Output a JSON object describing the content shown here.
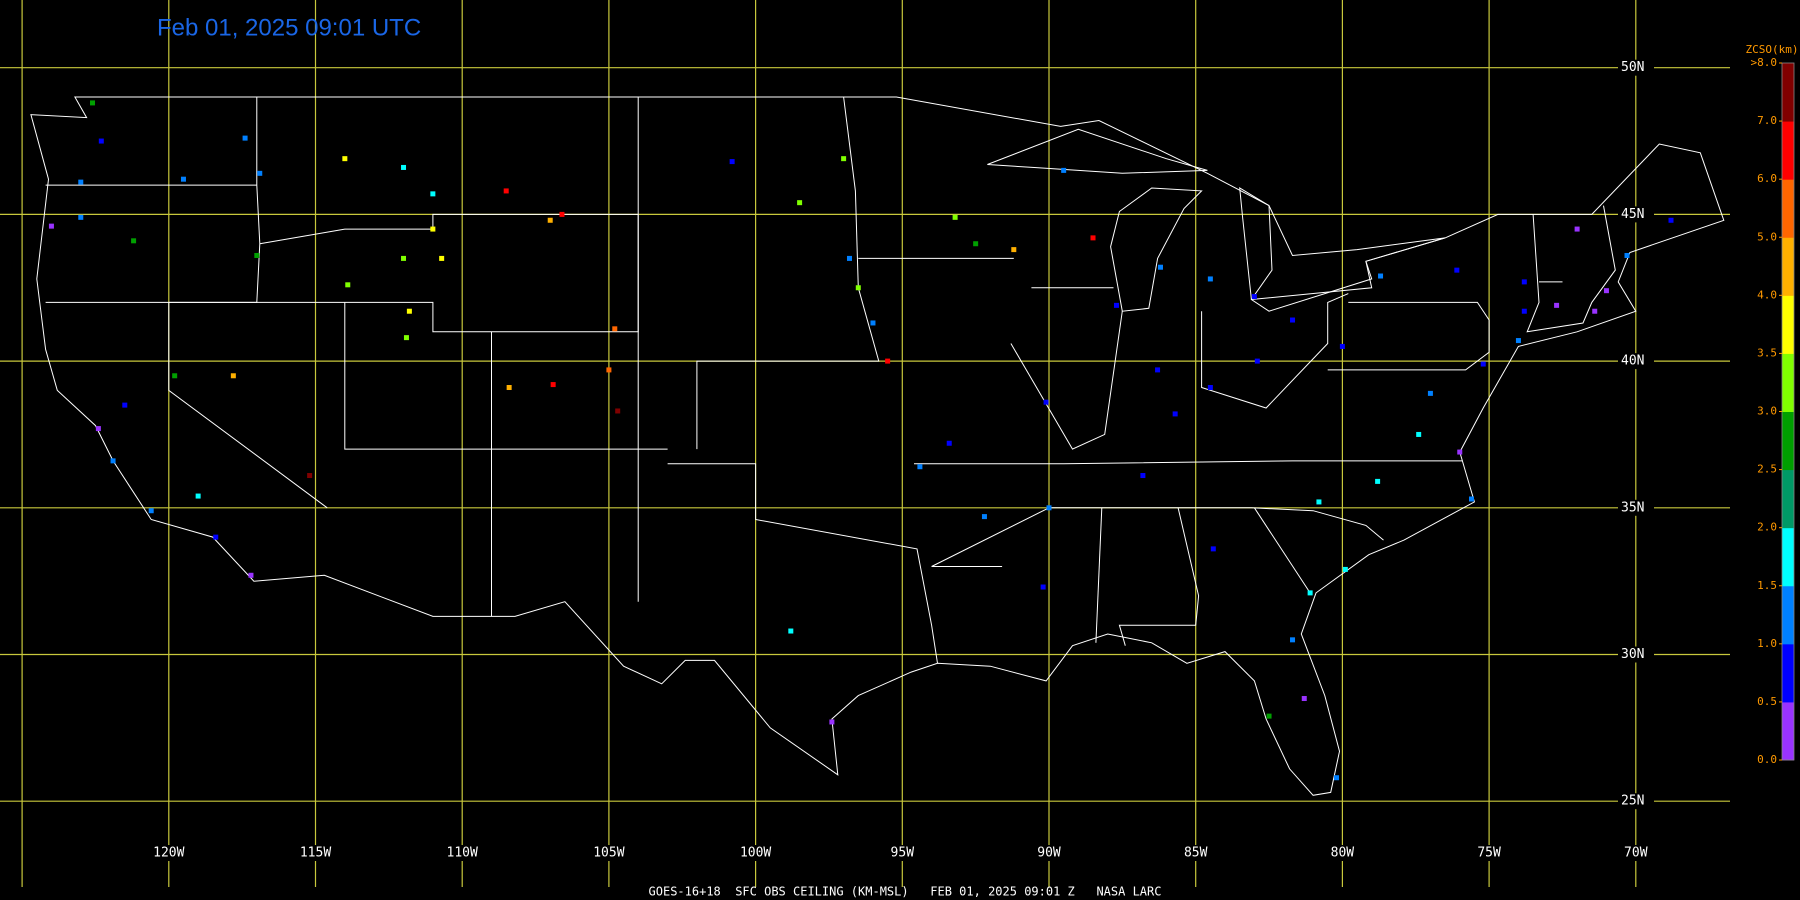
{
  "header": {
    "title": "Feb 01, 2025 09:01 UTC"
  },
  "footer": {
    "text": "GOES-16+18  SFC OBS CEILING (KM-MSL)   FEB 01, 2025 09:01 Z   NASA LARC"
  },
  "grid": {
    "lon_lines": [
      {
        "value": -125,
        "label": null
      },
      {
        "value": -120,
        "label": "120W"
      },
      {
        "value": -115,
        "label": "115W"
      },
      {
        "value": -110,
        "label": "110W"
      },
      {
        "value": -105,
        "label": "105W"
      },
      {
        "value": -100,
        "label": "100W"
      },
      {
        "value": -95,
        "label": "95W"
      },
      {
        "value": -90,
        "label": "90W"
      },
      {
        "value": -85,
        "label": "85W"
      },
      {
        "value": -80,
        "label": "80W"
      },
      {
        "value": -75,
        "label": "75W"
      },
      {
        "value": -70,
        "label": "70W"
      }
    ],
    "lat_lines": [
      {
        "value": 50,
        "label": "50N"
      },
      {
        "value": 45,
        "label": "45N"
      },
      {
        "value": 40,
        "label": "40N"
      },
      {
        "value": 35,
        "label": "35N"
      },
      {
        "value": 30,
        "label": "30N"
      },
      {
        "value": 25,
        "label": "25N"
      }
    ]
  },
  "colorbar": {
    "title": "ZCSO(km)",
    "ticks": [
      {
        "value": 0,
        "label": "0.0"
      },
      {
        "value": 0.5,
        "label": "0.5"
      },
      {
        "value": 1,
        "label": "1.0"
      },
      {
        "value": 1.5,
        "label": "1.5"
      },
      {
        "value": 2,
        "label": "2.0"
      },
      {
        "value": 2.5,
        "label": "2.5"
      },
      {
        "value": 3,
        "label": "3.0"
      },
      {
        "value": 3.5,
        "label": "3.5"
      },
      {
        "value": 4,
        "label": "4.0"
      },
      {
        "value": 5,
        "label": "5.0"
      },
      {
        "value": 6,
        "label": "6.0"
      },
      {
        "value": 7,
        "label": "7.0"
      },
      {
        "value": 8,
        "label": ">8.0"
      }
    ],
    "colors": [
      "#9933ff",
      "#0000ff",
      "#0080ff",
      "#00ffff",
      "#009966",
      "#00a000",
      "#80ff00",
      "#ffff00",
      "#ffb000",
      "#ff6600",
      "#ff0000",
      "#800000"
    ]
  },
  "observations": [
    {
      "lon": -122.3,
      "lat": 47.5,
      "km": 0.8
    },
    {
      "lon": -122.6,
      "lat": 48.8,
      "km": 2.5
    },
    {
      "lon": -123.0,
      "lat": 46.1,
      "km": 1.1
    },
    {
      "lon": -124.0,
      "lat": 44.6,
      "km": 0.4
    },
    {
      "lon": -123.0,
      "lat": 44.9,
      "km": 1.2
    },
    {
      "lon": -121.2,
      "lat": 44.1,
      "km": 2.7
    },
    {
      "lon": -117.4,
      "lat": 47.6,
      "km": 1.2
    },
    {
      "lon": -116.9,
      "lat": 46.4,
      "km": 1.3
    },
    {
      "lon": -119.5,
      "lat": 46.2,
      "km": 1.2
    },
    {
      "lon": -117.0,
      "lat": 43.6,
      "km": 2.8
    },
    {
      "lon": -114.0,
      "lat": 46.9,
      "km": 3.9
    },
    {
      "lon": -112.0,
      "lat": 46.6,
      "km": 1.8
    },
    {
      "lon": -111.0,
      "lat": 45.7,
      "km": 1.6
    },
    {
      "lon": -108.5,
      "lat": 45.8,
      "km": 6.9
    },
    {
      "lon": -106.6,
      "lat": 45.0,
      "km": 6.9
    },
    {
      "lon": -112.0,
      "lat": 43.5,
      "km": 3.4
    },
    {
      "lon": -111.0,
      "lat": 44.5,
      "km": 3.9
    },
    {
      "lon": -113.9,
      "lat": 42.6,
      "km": 3.4
    },
    {
      "lon": -110.7,
      "lat": 43.5,
      "km": 3.8
    },
    {
      "lon": -107.0,
      "lat": 44.8,
      "km": 4.6
    },
    {
      "lon": -104.8,
      "lat": 41.1,
      "km": 5.2
    },
    {
      "lon": -108.4,
      "lat": 39.1,
      "km": 4.6
    },
    {
      "lon": -106.9,
      "lat": 39.2,
      "km": 6.9
    },
    {
      "lon": -105.0,
      "lat": 39.7,
      "km": 5.2
    },
    {
      "lon": -104.7,
      "lat": 38.3,
      "km": 7.5
    },
    {
      "lon": -111.9,
      "lat": 40.8,
      "km": 3.1
    },
    {
      "lon": -111.8,
      "lat": 41.7,
      "km": 3.6
    },
    {
      "lon": -115.2,
      "lat": 36.1,
      "km": 7.2
    },
    {
      "lon": -119.8,
      "lat": 39.5,
      "km": 2.8
    },
    {
      "lon": -117.8,
      "lat": 39.5,
      "km": 4.9
    },
    {
      "lon": -121.5,
      "lat": 38.5,
      "km": 0.8
    },
    {
      "lon": -122.4,
      "lat": 37.7,
      "km": 0.3
    },
    {
      "lon": -121.9,
      "lat": 36.6,
      "km": 1.2
    },
    {
      "lon": -118.4,
      "lat": 34.0,
      "km": 0.5
    },
    {
      "lon": -117.2,
      "lat": 32.7,
      "km": 0.3
    },
    {
      "lon": -120.6,
      "lat": 34.9,
      "km": 1.3
    },
    {
      "lon": -119.0,
      "lat": 35.4,
      "km": 1.8
    },
    {
      "lon": -100.8,
      "lat": 46.8,
      "km": 0.8
    },
    {
      "lon": -97.0,
      "lat": 46.9,
      "km": 3.4
    },
    {
      "lon": -96.8,
      "lat": 43.5,
      "km": 1.1
    },
    {
      "lon": -98.5,
      "lat": 45.4,
      "km": 3.4
    },
    {
      "lon": -93.2,
      "lat": 44.9,
      "km": 3.2
    },
    {
      "lon": -92.5,
      "lat": 44.0,
      "km": 2.8
    },
    {
      "lon": -91.2,
      "lat": 43.8,
      "km": 4.2
    },
    {
      "lon": -96.0,
      "lat": 41.3,
      "km": 1.1
    },
    {
      "lon": -96.5,
      "lat": 42.5,
      "km": 3.0
    },
    {
      "lon": -95.5,
      "lat": 40.0,
      "km": 6.8
    },
    {
      "lon": -89.5,
      "lat": 46.5,
      "km": 1.1
    },
    {
      "lon": -88.5,
      "lat": 44.2,
      "km": 6.7
    },
    {
      "lon": -86.2,
      "lat": 43.2,
      "km": 1.2
    },
    {
      "lon": -84.5,
      "lat": 42.8,
      "km": 1.3
    },
    {
      "lon": -83.0,
      "lat": 42.2,
      "km": 0.9
    },
    {
      "lon": -87.7,
      "lat": 41.9,
      "km": 0.8
    },
    {
      "lon": -86.3,
      "lat": 39.7,
      "km": 0.8
    },
    {
      "lon": -85.7,
      "lat": 38.2,
      "km": 0.9
    },
    {
      "lon": -84.5,
      "lat": 39.1,
      "km": 0.9
    },
    {
      "lon": -82.9,
      "lat": 40.0,
      "km": 0.9
    },
    {
      "lon": -81.7,
      "lat": 41.4,
      "km": 0.9
    },
    {
      "lon": -80.0,
      "lat": 40.5,
      "km": 0.8
    },
    {
      "lon": -77.0,
      "lat": 38.9,
      "km": 1.0
    },
    {
      "lon": -75.2,
      "lat": 39.9,
      "km": 0.9
    },
    {
      "lon": -74.0,
      "lat": 40.7,
      "km": 1.2
    },
    {
      "lon": -73.8,
      "lat": 41.7,
      "km": 0.6
    },
    {
      "lon": -71.4,
      "lat": 41.7,
      "km": 0.4
    },
    {
      "lon": -71.0,
      "lat": 42.4,
      "km": 0.3
    },
    {
      "lon": -72.7,
      "lat": 41.9,
      "km": 0.4
    },
    {
      "lon": -70.3,
      "lat": 43.6,
      "km": 1.1
    },
    {
      "lon": -68.8,
      "lat": 44.8,
      "km": 0.6
    },
    {
      "lon": -76.1,
      "lat": 43.1,
      "km": 0.8
    },
    {
      "lon": -78.7,
      "lat": 42.9,
      "km": 1.0
    },
    {
      "lon": -73.8,
      "lat": 42.7,
      "km": 0.9
    },
    {
      "lon": -72.0,
      "lat": 44.5,
      "km": 0.4
    },
    {
      "lon": -80.8,
      "lat": 35.2,
      "km": 1.9
    },
    {
      "lon": -78.8,
      "lat": 35.9,
      "km": 1.8
    },
    {
      "lon": -77.4,
      "lat": 37.5,
      "km": 1.7
    },
    {
      "lon": -76.0,
      "lat": 36.9,
      "km": 0.3
    },
    {
      "lon": -75.6,
      "lat": 35.3,
      "km": 1.2
    },
    {
      "lon": -79.9,
      "lat": 32.9,
      "km": 1.6
    },
    {
      "lon": -81.1,
      "lat": 32.1,
      "km": 1.7
    },
    {
      "lon": -81.7,
      "lat": 30.5,
      "km": 1.2
    },
    {
      "lon": -81.3,
      "lat": 28.5,
      "km": 0.4
    },
    {
      "lon": -82.5,
      "lat": 27.9,
      "km": 2.5
    },
    {
      "lon": -80.2,
      "lat": 25.8,
      "km": 1.1
    },
    {
      "lon": -84.4,
      "lat": 33.6,
      "km": 0.9
    },
    {
      "lon": -86.8,
      "lat": 36.1,
      "km": 0.9
    },
    {
      "lon": -90.0,
      "lat": 35.0,
      "km": 1.1
    },
    {
      "lon": -92.2,
      "lat": 34.7,
      "km": 1.0
    },
    {
      "lon": -90.2,
      "lat": 32.3,
      "km": 0.9
    },
    {
      "lon": -90.1,
      "lat": 38.6,
      "km": 0.8
    },
    {
      "lon": -93.4,
      "lat": 37.2,
      "km": 0.9
    },
    {
      "lon": -94.4,
      "lat": 36.4,
      "km": 1.0
    },
    {
      "lon": -97.4,
      "lat": 27.7,
      "km": 0.3
    },
    {
      "lon": -98.8,
      "lat": 30.8,
      "km": 1.7
    }
  ]
}
